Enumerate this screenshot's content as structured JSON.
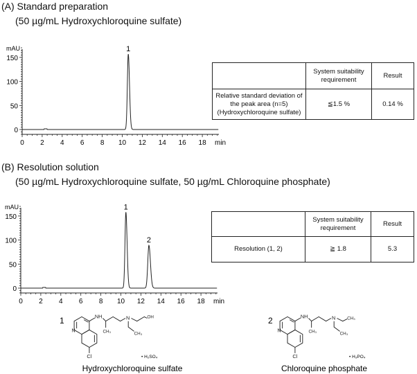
{
  "panel_a": {
    "title": "(A) Standard preparation",
    "subtitle": "(50 µg/mL Hydroxychloroquine sulfate)",
    "table": {
      "headers": [
        "",
        "System  suitability requirement",
        "Result"
      ],
      "rows": [
        [
          "Relative standard deviation of the peak area (n=5) (Hydroxychloroquine sulfate)",
          "≦1.5 %",
          "0.14 %"
        ]
      ]
    }
  },
  "panel_b": {
    "title": "(B) Resolution solution",
    "subtitle": "(50 µg/mL Hydroxychloroquine sulfate, 50 µg/mL Chloroquine phosphate)",
    "table": {
      "headers": [
        "",
        "System  suitability requirement",
        "Result"
      ],
      "rows": [
        [
          "Resolution (1, 2)",
          "≧  1.8",
          "5.3"
        ]
      ]
    }
  },
  "chart_data": [
    {
      "type": "line",
      "ylabel": "mAU",
      "xlabel": "min",
      "xlim": [
        0,
        20
      ],
      "ylim": [
        -10,
        170
      ],
      "xticks": [
        "0",
        "2",
        "4",
        "6",
        "8",
        "10",
        "12",
        "14",
        "16",
        "18"
      ],
      "yticks": [
        "0",
        "50",
        "100",
        "150"
      ],
      "grid": false,
      "line_color": "#222222",
      "peaks": [
        {
          "label": "1",
          "retention_time": 10.6,
          "height": 157
        }
      ]
    },
    {
      "type": "line",
      "ylabel": "mAU",
      "xlabel": "min",
      "xlim": [
        0,
        20
      ],
      "ylim": [
        -10,
        170
      ],
      "xticks": [
        "0",
        "2",
        "4",
        "6",
        "8",
        "10",
        "12",
        "14",
        "16",
        "18"
      ],
      "yticks": [
        "0",
        "50",
        "100",
        "150"
      ],
      "grid": false,
      "line_color": "#222222",
      "peaks": [
        {
          "label": "1",
          "retention_time": 10.5,
          "height": 158
        },
        {
          "label": "2",
          "retention_time": 12.8,
          "height": 89
        }
      ]
    }
  ],
  "structures": [
    {
      "number": "1",
      "name": "Hydroxychloroquine sulfate",
      "salt": "• H₂SO₄",
      "labels": {
        "n": "N",
        "nh": "NH",
        "ch3": "CH₃",
        "amine_n": "N",
        "end": "OH",
        "ethyl": "CH₃",
        "cl": "Cl"
      }
    },
    {
      "number": "2",
      "name": "Chloroquine phosphate",
      "salt": "• H₃PO₄",
      "labels": {
        "n": "N",
        "nh": "NH",
        "ch3": "CH₃",
        "amine_n": "N",
        "end": "CH₃",
        "ethyl": "CH₃",
        "cl": "Cl"
      }
    }
  ]
}
